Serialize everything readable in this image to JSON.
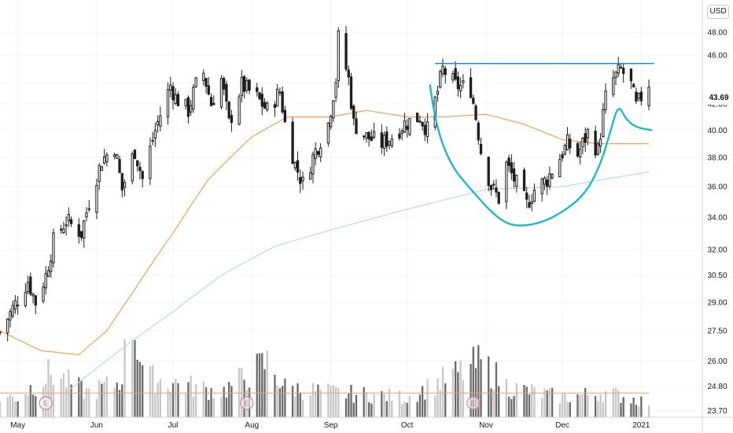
{
  "currency": "USD",
  "last_price_label": "43.69",
  "colors": {
    "background": "#ffffff",
    "candle": "#1e1e1e",
    "volume_up": "#c7c7c7",
    "volume_down": "#6b6b6b",
    "ma_short": "#f0a058",
    "ma_long": "#b9d9e6",
    "pattern": "#1fb8c9",
    "resistance": "#1589d6",
    "axis_text": "#131722",
    "grid": "#f0f3fa",
    "earnings_marker": "#c98a8a"
  },
  "chart_data": {
    "type": "candlestick",
    "title": "",
    "y_axis": {
      "scale": "log",
      "ticks": [
        23.7,
        24.8,
        26.0,
        27.5,
        29.0,
        30.5,
        32.0,
        34.0,
        36.0,
        38.0,
        40.0,
        42.0,
        43.69,
        46.0,
        48.0
      ],
      "tick_labels": [
        "23.70",
        "24.80",
        "26.00",
        "27.50",
        "29.00",
        "30.50",
        "32.00",
        "34.00",
        "36.00",
        "38.00",
        "40.00",
        "42.00",
        "43.69",
        "46.00",
        "48.00"
      ],
      "range": [
        23.4,
        51.0
      ],
      "position": "right"
    },
    "x_axis": {
      "labels": [
        "May",
        "Jun",
        "Jul",
        "Aug",
        "Sep",
        "Oct",
        "Nov",
        "Dec",
        "2021"
      ],
      "label_dates": [
        "2020-05-01",
        "2020-06-01",
        "2020-07-01",
        "2020-08-01",
        "2020-09-01",
        "2020-10-01",
        "2020-11-01",
        "2020-12-01",
        "2021-01-01"
      ],
      "range": [
        "2020-04-24",
        "2021-01-25"
      ]
    },
    "grid": true,
    "close_anchors": [
      [
        "2020-04-24",
        27.4
      ],
      [
        "2020-05-05",
        30.2
      ],
      [
        "2020-05-08",
        29.0
      ],
      [
        "2020-05-12",
        30.5
      ],
      [
        "2020-05-15",
        32.5
      ],
      [
        "2020-05-20",
        33.8
      ],
      [
        "2020-05-26",
        33.0
      ],
      [
        "2020-05-29",
        35.0
      ],
      [
        "2020-06-03",
        37.8
      ],
      [
        "2020-06-08",
        38.8
      ],
      [
        "2020-06-11",
        35.8
      ],
      [
        "2020-06-16",
        38.5
      ],
      [
        "2020-06-19",
        36.5
      ],
      [
        "2020-06-24",
        40.0
      ],
      [
        "2020-06-30",
        43.5
      ],
      [
        "2020-07-02",
        42.5
      ],
      [
        "2020-07-07",
        41.5
      ],
      [
        "2020-07-10",
        43.5
      ],
      [
        "2020-07-13",
        44.5
      ],
      [
        "2020-07-16",
        42.0
      ],
      [
        "2020-07-20",
        44.0
      ],
      [
        "2020-07-23",
        40.5
      ],
      [
        "2020-07-28",
        43.5
      ],
      [
        "2020-08-03",
        42.5
      ],
      [
        "2020-08-07",
        41.5
      ],
      [
        "2020-08-12",
        43.0
      ],
      [
        "2020-08-14",
        40.5
      ],
      [
        "2020-08-18",
        37.5
      ],
      [
        "2020-08-21",
        36.2
      ],
      [
        "2020-08-26",
        38.5
      ],
      [
        "2020-08-31",
        40.5
      ],
      [
        "2020-09-03",
        44.0
      ],
      [
        "2020-09-04",
        47.5
      ],
      [
        "2020-09-08",
        44.0
      ],
      [
        "2020-09-10",
        40.5
      ],
      [
        "2020-09-15",
        39.5
      ],
      [
        "2020-09-21",
        39.0
      ],
      [
        "2020-09-25",
        39.5
      ],
      [
        "2020-09-30",
        40.5
      ],
      [
        "2020-10-06",
        41.0
      ],
      [
        "2020-10-09",
        40.0
      ],
      [
        "2020-10-13",
        43.0
      ],
      [
        "2020-10-15",
        44.8
      ],
      [
        "2020-10-20",
        43.5
      ],
      [
        "2020-10-26",
        43.2
      ],
      [
        "2020-10-28",
        41.0
      ],
      [
        "2020-10-30",
        38.5
      ],
      [
        "2020-11-03",
        36.0
      ],
      [
        "2020-11-06",
        35.2
      ],
      [
        "2020-11-09",
        37.5
      ],
      [
        "2020-11-12",
        36.5
      ],
      [
        "2020-11-17",
        34.8
      ],
      [
        "2020-11-20",
        35.8
      ],
      [
        "2020-11-25",
        36.5
      ],
      [
        "2020-11-30",
        38.0
      ],
      [
        "2020-12-03",
        39.0
      ],
      [
        "2020-12-07",
        38.2
      ],
      [
        "2020-12-11",
        39.8
      ],
      [
        "2020-12-15",
        38.5
      ],
      [
        "2020-12-18",
        42.5
      ],
      [
        "2020-12-21",
        44.0
      ],
      [
        "2020-12-24",
        44.8
      ],
      [
        "2020-12-28",
        43.5
      ],
      [
        "2020-12-30",
        41.8
      ],
      [
        "2021-01-04",
        43.7
      ]
    ],
    "volume_anchors": [
      [
        "2020-05-01",
        0.2
      ],
      [
        "2020-05-14",
        0.45
      ],
      [
        "2020-05-28",
        0.25
      ],
      [
        "2020-06-10",
        0.35
      ],
      [
        "2020-06-15",
        1.0
      ],
      [
        "2020-06-20",
        0.4
      ],
      [
        "2020-07-01",
        0.35
      ],
      [
        "2020-07-20",
        0.25
      ],
      [
        "2020-08-07",
        0.55
      ],
      [
        "2020-08-14",
        0.3
      ],
      [
        "2020-09-01",
        0.25
      ],
      [
        "2020-10-01",
        0.2
      ],
      [
        "2020-10-30",
        0.55
      ],
      [
        "2020-11-10",
        0.3
      ],
      [
        "2020-12-01",
        0.2
      ],
      [
        "2020-12-18",
        0.25
      ],
      [
        "2021-01-04",
        0.15
      ]
    ],
    "ma_short_anchors": [
      [
        "2020-04-24",
        27.5
      ],
      [
        "2020-05-10",
        26.5
      ],
      [
        "2020-05-25",
        26.3
      ],
      [
        "2020-06-05",
        27.5
      ],
      [
        "2020-06-15",
        29.5
      ],
      [
        "2020-07-01",
        33.0
      ],
      [
        "2020-07-15",
        36.5
      ],
      [
        "2020-08-01",
        39.5
      ],
      [
        "2020-08-15",
        41.0
      ],
      [
        "2020-09-01",
        41.0
      ],
      [
        "2020-09-15",
        41.5
      ],
      [
        "2020-10-01",
        41.0
      ],
      [
        "2020-10-15",
        41.0
      ],
      [
        "2020-11-01",
        41.2
      ],
      [
        "2020-11-15",
        40.5
      ],
      [
        "2020-12-01",
        39.3
      ],
      [
        "2020-12-15",
        39.0
      ],
      [
        "2021-01-04",
        39.0
      ]
    ],
    "ma_long_anchors": [
      [
        "2020-05-20",
        24.5
      ],
      [
        "2020-06-10",
        26.5
      ],
      [
        "2020-07-01",
        28.5
      ],
      [
        "2020-07-20",
        30.5
      ],
      [
        "2020-08-10",
        32.2
      ],
      [
        "2020-09-01",
        33.2
      ],
      [
        "2020-10-01",
        34.5
      ],
      [
        "2020-11-01",
        35.8
      ],
      [
        "2020-12-01",
        36.0
      ],
      [
        "2021-01-04",
        37.0
      ]
    ],
    "resistance_level": 45.3,
    "resistance_range": [
      "2020-10-12",
      "2021-01-06"
    ],
    "cup_curve": [
      [
        "2020-10-10",
        43.5
      ],
      [
        "2020-10-12",
        40.5
      ],
      [
        "2020-10-18",
        37.5
      ],
      [
        "2020-10-26",
        35.8
      ],
      [
        "2020-11-05",
        34.0
      ],
      [
        "2020-11-12",
        33.4
      ],
      [
        "2020-11-22",
        33.6
      ],
      [
        "2020-12-01",
        34.3
      ],
      [
        "2020-12-10",
        35.5
      ],
      [
        "2020-12-16",
        37.5
      ],
      [
        "2020-12-20",
        40.0
      ],
      [
        "2020-12-23",
        42.0
      ],
      [
        "2020-12-26",
        40.8
      ],
      [
        "2020-12-30",
        40.2
      ],
      [
        "2021-01-05",
        40.0
      ]
    ],
    "earnings_dates": [
      "2020-05-12",
      "2020-07-30",
      "2020-10-27"
    ],
    "earnings_marker_label": "E"
  }
}
